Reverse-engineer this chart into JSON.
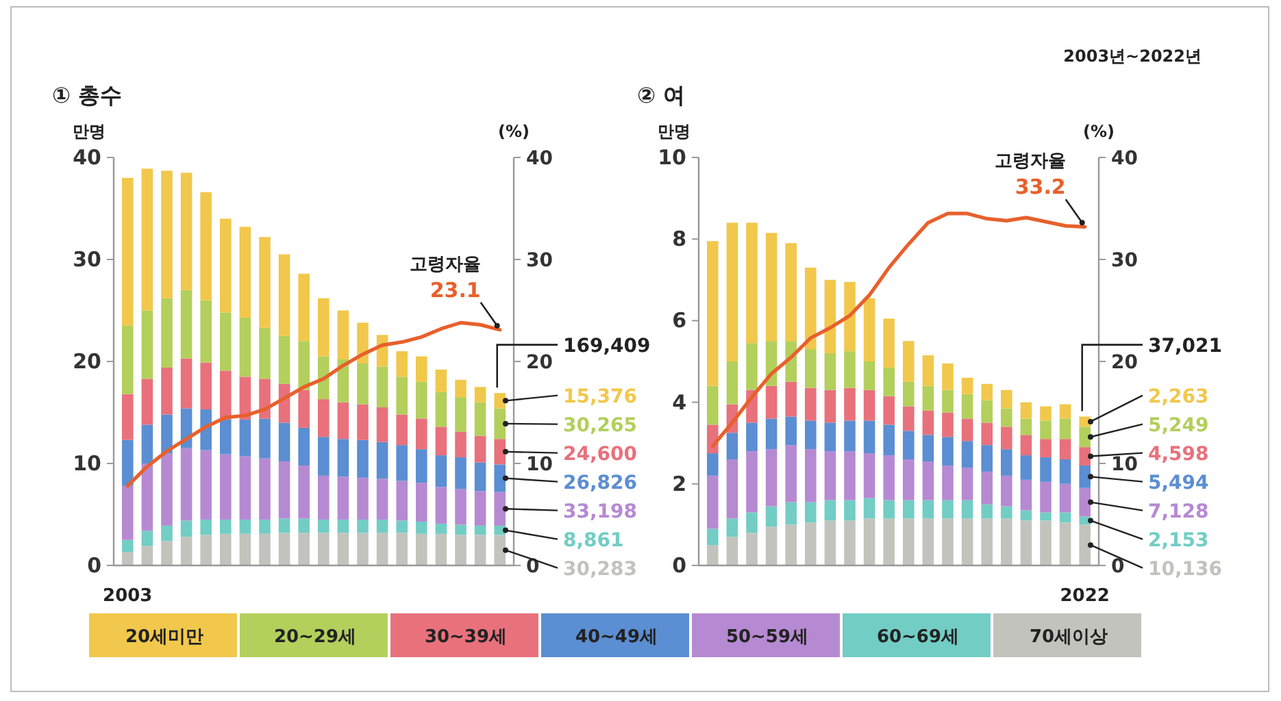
{
  "chart_data": [
    {
      "type": "bar",
      "title": "① 총수",
      "ylabel": "만명",
      "y2label": "(%)",
      "stacked": true,
      "legend": "bottom",
      "annotations": [
        "169,409",
        "15,376",
        "30,265",
        "24,600",
        "26,826",
        "33,198",
        "8,861",
        "30,283"
      ],
      "categories": [
        "2003",
        null,
        null,
        null,
        null,
        null,
        null,
        null,
        null,
        null,
        null,
        null,
        null,
        null,
        null,
        null,
        null,
        null,
        null,
        null
      ],
      "ylim": [
        0,
        40
      ],
      "yticks": [
        0,
        10,
        20,
        30,
        40
      ],
      "y2lim": [
        0,
        40
      ],
      "y2ticks": [
        0,
        10,
        20,
        30,
        40
      ],
      "series": [
        {
          "name": "70세이상",
          "color": "#c3c3bd",
          "values": [
            1.3,
            1.9,
            2.4,
            2.8,
            3.0,
            3.1,
            3.1,
            3.1,
            3.2,
            3.2,
            3.2,
            3.2,
            3.2,
            3.2,
            3.2,
            3.1,
            3.1,
            3.0,
            3.0,
            3.0
          ]
        },
        {
          "name": "60~69세",
          "color": "#72cdc4",
          "values": [
            1.2,
            1.5,
            1.5,
            1.6,
            1.5,
            1.4,
            1.4,
            1.4,
            1.4,
            1.4,
            1.3,
            1.3,
            1.3,
            1.3,
            1.2,
            1.2,
            1.0,
            1.0,
            0.9,
            0.9
          ]
        },
        {
          "name": "50~59세",
          "color": "#b68ad2",
          "values": [
            5.3,
            6.6,
            7.1,
            7.1,
            6.8,
            6.4,
            6.2,
            6.0,
            5.6,
            5.2,
            4.3,
            4.2,
            4.1,
            4.0,
            3.9,
            3.8,
            3.6,
            3.5,
            3.4,
            3.3
          ]
        },
        {
          "name": "40~49세",
          "color": "#5b8ed2",
          "values": [
            4.5,
            3.8,
            3.8,
            3.9,
            4.0,
            3.4,
            3.6,
            3.9,
            3.8,
            3.7,
            3.8,
            3.7,
            3.7,
            3.6,
            3.5,
            3.3,
            3.1,
            3.1,
            2.8,
            2.7
          ]
        },
        {
          "name": "30~39세",
          "color": "#e8717c",
          "values": [
            4.5,
            4.5,
            4.6,
            4.9,
            4.6,
            4.8,
            4.2,
            3.9,
            3.8,
            3.7,
            3.7,
            3.6,
            3.5,
            3.4,
            3.0,
            3.0,
            2.8,
            2.5,
            2.6,
            2.5
          ]
        },
        {
          "name": "20~29세",
          "color": "#b3cf5c",
          "values": [
            6.7,
            6.7,
            6.8,
            6.7,
            6.1,
            5.7,
            5.8,
            5.0,
            4.7,
            4.8,
            4.2,
            4.2,
            4.0,
            4.0,
            3.7,
            3.6,
            3.4,
            3.4,
            3.3,
            3.0
          ]
        },
        {
          "name": "20세미만",
          "color": "#f1c84c",
          "values": [
            14.5,
            13.9,
            12.5,
            11.5,
            10.6,
            9.2,
            8.9,
            8.9,
            8.0,
            6.6,
            5.7,
            4.8,
            4.0,
            3.1,
            2.5,
            2.5,
            2.2,
            1.7,
            1.5,
            1.5
          ]
        },
        {
          "type": "line",
          "axis": "y2",
          "name": "고령자율",
          "color": "#e8602c",
          "values": [
            7.8,
            9.7,
            11.2,
            12.4,
            13.6,
            14.5,
            14.7,
            15.3,
            16.4,
            17.5,
            18.3,
            19.6,
            20.7,
            21.6,
            21.9,
            22.4,
            23.2,
            23.8,
            23.6,
            23.1
          ],
          "value_labels": [
            null,
            null,
            null,
            null,
            null,
            null,
            null,
            null,
            null,
            null,
            null,
            null,
            null,
            null,
            null,
            null,
            null,
            null,
            null,
            "23.1"
          ]
        }
      ]
    },
    {
      "type": "bar",
      "title": "② 여",
      "subtitle": "2003년~2022년",
      "ylabel": "만명",
      "y2label": "(%)",
      "stacked": true,
      "annotations": [
        "37,021",
        "2,263",
        "5,249",
        "4,598",
        "5,494",
        "7,128",
        "2,153",
        "10,136"
      ],
      "categories": [
        null,
        null,
        null,
        null,
        null,
        null,
        null,
        null,
        null,
        null,
        null,
        null,
        null,
        null,
        null,
        null,
        null,
        null,
        null,
        "2022"
      ],
      "ylim": [
        0,
        10
      ],
      "yticks": [
        0,
        2,
        4,
        6,
        8,
        10
      ],
      "y2lim": [
        0,
        40
      ],
      "y2ticks": [
        0,
        10,
        20,
        30,
        40
      ],
      "series": [
        {
          "color": "#c3c3bd",
          "values": [
            0.5,
            0.7,
            0.8,
            0.95,
            1.0,
            1.05,
            1.1,
            1.1,
            1.15,
            1.15,
            1.15,
            1.15,
            1.15,
            1.15,
            1.15,
            1.15,
            1.1,
            1.1,
            1.05,
            1.0
          ]
        },
        {
          "color": "#72cdc4",
          "values": [
            0.4,
            0.45,
            0.5,
            0.5,
            0.55,
            0.5,
            0.5,
            0.5,
            0.5,
            0.45,
            0.45,
            0.45,
            0.45,
            0.45,
            0.35,
            0.3,
            0.25,
            0.2,
            0.25,
            0.2
          ]
        },
        {
          "color": "#b68ad2",
          "values": [
            1.3,
            1.45,
            1.5,
            1.4,
            1.4,
            1.3,
            1.2,
            1.2,
            1.1,
            1.1,
            1.0,
            0.95,
            0.85,
            0.8,
            0.8,
            0.75,
            0.75,
            0.75,
            0.7,
            0.7
          ]
        },
        {
          "color": "#5b8ed2",
          "values": [
            0.55,
            0.65,
            0.7,
            0.75,
            0.7,
            0.7,
            0.7,
            0.75,
            0.8,
            0.75,
            0.7,
            0.65,
            0.7,
            0.65,
            0.65,
            0.65,
            0.6,
            0.6,
            0.6,
            0.55
          ]
        },
        {
          "color": "#e8717c",
          "values": [
            0.7,
            0.7,
            0.8,
            0.8,
            0.85,
            0.8,
            0.8,
            0.8,
            0.75,
            0.7,
            0.6,
            0.6,
            0.6,
            0.55,
            0.55,
            0.55,
            0.5,
            0.45,
            0.5,
            0.45
          ]
        },
        {
          "color": "#b3cf5c",
          "values": [
            0.95,
            1.05,
            1.15,
            1.1,
            1.0,
            0.95,
            0.9,
            0.9,
            0.7,
            0.7,
            0.6,
            0.6,
            0.55,
            0.6,
            0.55,
            0.45,
            0.4,
            0.45,
            0.5,
            0.5
          ]
        },
        {
          "color": "#f1c84c",
          "values": [
            3.55,
            3.4,
            2.95,
            2.65,
            2.4,
            2.0,
            1.8,
            1.7,
            1.55,
            1.2,
            1.0,
            0.75,
            0.65,
            0.4,
            0.4,
            0.45,
            0.4,
            0.35,
            0.35,
            0.25
          ]
        },
        {
          "type": "line",
          "axis": "y2",
          "name": "고령자율",
          "color": "#e8602c",
          "values": [
            11.7,
            14.0,
            16.5,
            18.8,
            20.4,
            22.3,
            23.3,
            24.5,
            26.5,
            29.2,
            31.5,
            33.6,
            34.5,
            34.5,
            34.0,
            33.8,
            34.1,
            33.7,
            33.3,
            33.2
          ],
          "value_labels": [
            null,
            null,
            null,
            null,
            null,
            null,
            null,
            null,
            null,
            null,
            null,
            null,
            null,
            null,
            null,
            null,
            null,
            null,
            null,
            "33.2"
          ]
        }
      ]
    }
  ]
}
